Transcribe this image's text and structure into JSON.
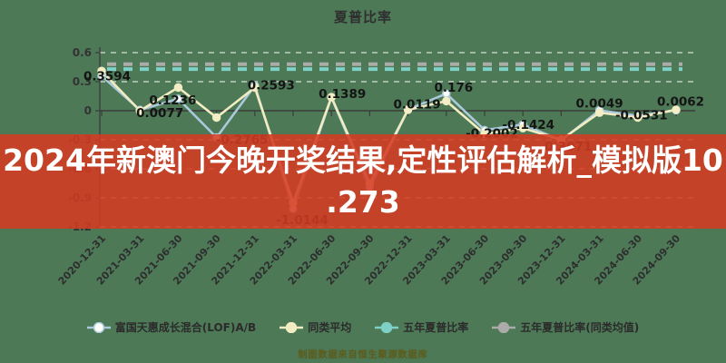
{
  "title": "夏普比率",
  "banner": {
    "line1": "2024年新澳门今晚开奖结果,定性评估解析_模拟版10",
    "line2": ".273",
    "bg_color": "#d53a21",
    "text_color": "#ffffff"
  },
  "watermark": "制图数据来自恒生聚源数据库",
  "legend": {
    "items": [
      {
        "label": "富国天惠成长混合(LOF)A/B",
        "line_color": "#aac9db",
        "fill_color": "#fcfdf8"
      },
      {
        "label": "同类平均",
        "line_color": "#f1ecc1",
        "fill_color": "#f1ecc1"
      },
      {
        "label": "五年夏普比率",
        "line_color": "#7fd0c6",
        "fill_color": "#7fd0c6"
      },
      {
        "label": "五年夏普比率(同类均值)",
        "line_color": "#adabaa",
        "fill_color": "#adabaa"
      }
    ]
  },
  "chart_data": {
    "type": "line",
    "title": "夏普比率",
    "x": [
      "2020-12-31",
      "2021-03-31",
      "2021-06-30",
      "2021-09-30",
      "2021-12-31",
      "2022-03-31",
      "2022-06-30",
      "2022-09-30",
      "2022-12-31",
      "2023-03-31",
      "2023-06-30",
      "2023-09-30",
      "2023-12-31",
      "2024-03-31",
      "2024-06-30",
      "2024-09-30"
    ],
    "series": [
      {
        "name": "富国天惠成长混合(LOF)A/B",
        "color": "#aac9db",
        "marker_fill": "#fcfdf8",
        "values": [
          0.3594,
          0.0077,
          0.1236,
          -0.2765,
          0.2593,
          -1.0144,
          0.1389,
          -0.8,
          0.0119,
          0.176,
          -0.2002,
          -0.1424,
          -0.3071,
          0.0049,
          -0.0531,
          0.0062
        ],
        "labels": [
          "0.3594",
          "0.0077",
          "0.1236",
          "-0.2765",
          "0.2593",
          "-1.0144",
          "0.1389",
          "",
          "0.0119",
          "0.176",
          "-0.2002",
          "-0.1424",
          "-0.3071",
          "0.0049",
          "-0.0531",
          "0.0062"
        ]
      },
      {
        "name": "同类平均",
        "color": "#f1ecc1",
        "marker_fill": "#f3eec5",
        "values": [
          0.41,
          0.0,
          0.24,
          -0.07,
          0.24,
          -0.95,
          0.14,
          -0.75,
          0.01,
          0.1,
          -0.24,
          -0.18,
          -0.3,
          -0.02,
          -0.07,
          0.01
        ],
        "labels": null
      }
    ],
    "reference_lines": [
      {
        "name": "五年夏普比率",
        "value": 0.43,
        "color": "#7fd0c6",
        "style": "dashed"
      },
      {
        "name": "五年夏普比率(同类均值)",
        "value": 0.48,
        "color": "#adabaa",
        "style": "dashed"
      }
    ],
    "y_ticks": [
      0.6,
      0.3,
      0,
      -0.3,
      -0.6,
      -0.9,
      -1.2
    ],
    "y_tick_labels": [
      "0.6",
      "0.3",
      "0",
      "-0.3",
      "-0.6",
      "-0.9",
      "-1.2"
    ],
    "ylim": [
      -1.2,
      0.6
    ],
    "grid": true,
    "legend_position": "bottom",
    "background_color": "#4d7957"
  }
}
